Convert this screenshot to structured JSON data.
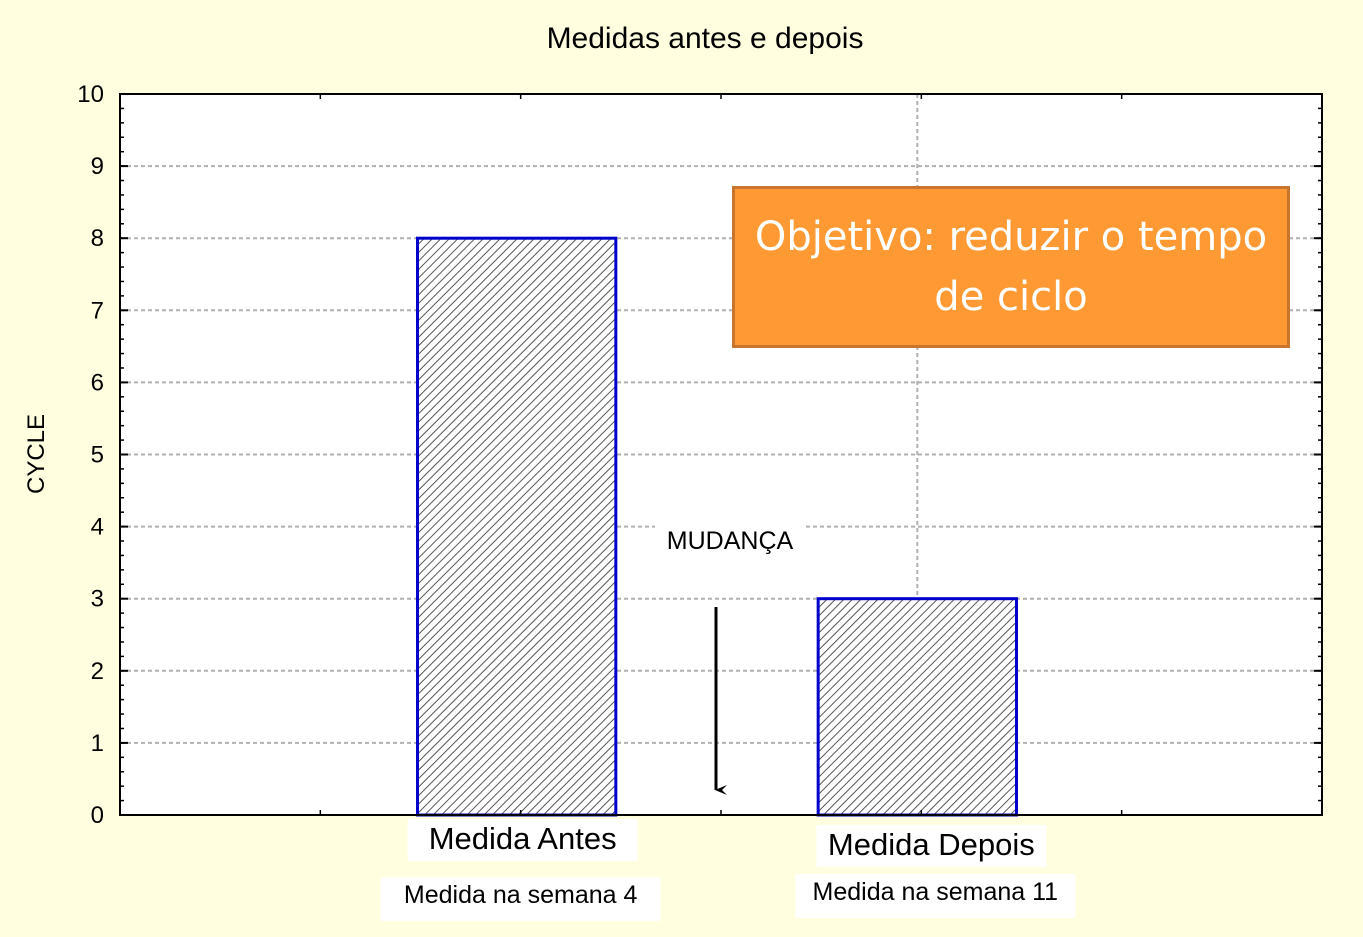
{
  "chart_data": {
    "type": "bar",
    "title": "Medidas antes e depois",
    "ylabel": "CYCLE",
    "xlabel": "",
    "ylim": [
      0,
      10
    ],
    "yticks": [
      0,
      1,
      2,
      3,
      4,
      5,
      6,
      7,
      8,
      9,
      10
    ],
    "grid": true,
    "categories": [
      "Medida Antes",
      "Medida Depois"
    ],
    "category_sublabels": [
      "Medida na semana 4",
      "Medida na semana 11"
    ],
    "values": [
      8,
      3
    ],
    "annotations": [
      {
        "text": "MUDANÇA",
        "type": "downward-arrow"
      },
      {
        "text": "Objetivo: reduzir o tempo de ciclo",
        "type": "callout-box"
      }
    ],
    "colors": {
      "background": "#ffffe0",
      "bar_edge": "#0000cc",
      "bar_hatch": "#555555",
      "grid": "#b0b0b0",
      "callout_fill": "#ff9933",
      "callout_border": "#c87530",
      "callout_text": "#ffffff"
    }
  }
}
